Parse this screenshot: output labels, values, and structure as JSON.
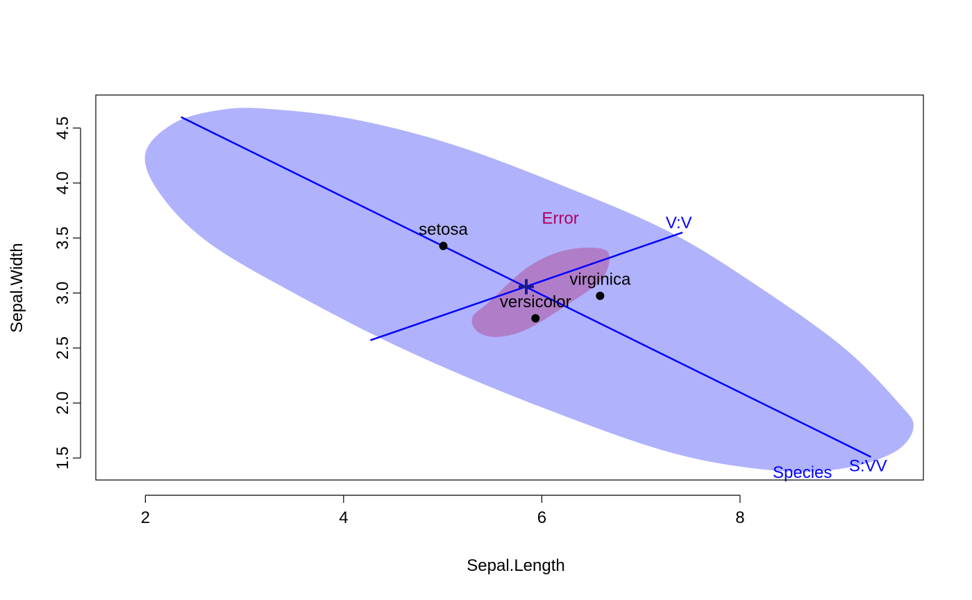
{
  "chart_data": {
    "type": "scatter",
    "title": "",
    "xlabel": "Sepal.Length",
    "ylabel": "Sepal.Width",
    "xlim": [
      1.5,
      9.85
    ],
    "ylim": [
      1.3,
      4.8
    ],
    "xticks": [
      2,
      4,
      6,
      8
    ],
    "yticks": [
      1.5,
      2.0,
      2.5,
      3.0,
      3.5,
      4.0,
      4.5
    ],
    "xtick_labels": [
      "2",
      "4",
      "6",
      "8"
    ],
    "ytick_labels": [
      "1.5",
      "2.0",
      "2.5",
      "3.0",
      "3.5",
      "4.0",
      "4.5"
    ],
    "grid": false,
    "legend": "none",
    "points": [
      {
        "label": "setosa",
        "x": 5.006,
        "y": 3.428
      },
      {
        "label": "versicolor",
        "x": 5.936,
        "y": 2.77
      },
      {
        "label": "virginica",
        "x": 6.588,
        "y": 2.974
      }
    ],
    "grand_mean": {
      "x": 5.843,
      "y": 3.057
    },
    "ellipses": [
      {
        "label": "Species",
        "fill": "#b0b2fc",
        "polygon": [
          [
            2.0,
            4.27
          ],
          [
            2.3,
            4.55
          ],
          [
            2.8,
            4.67
          ],
          [
            3.3,
            4.67
          ],
          [
            4.1,
            4.58
          ],
          [
            5.1,
            4.35
          ],
          [
            6.2,
            3.98
          ],
          [
            7.3,
            3.55
          ],
          [
            8.2,
            3.05
          ],
          [
            9.05,
            2.5
          ],
          [
            9.6,
            2.0
          ],
          [
            9.75,
            1.78
          ],
          [
            9.55,
            1.55
          ],
          [
            9.0,
            1.4
          ],
          [
            8.3,
            1.39
          ],
          [
            7.3,
            1.55
          ],
          [
            6.0,
            1.96
          ],
          [
            4.7,
            2.45
          ],
          [
            3.6,
            2.95
          ],
          [
            2.65,
            3.45
          ],
          [
            2.15,
            3.9
          ]
        ]
      },
      {
        "label": "Error",
        "fill": "#b07ec8",
        "polygon": [
          [
            5.47,
            2.92
          ],
          [
            5.85,
            3.23
          ],
          [
            6.2,
            3.38
          ],
          [
            6.55,
            3.41
          ],
          [
            6.68,
            3.34
          ],
          [
            6.6,
            3.12
          ],
          [
            6.25,
            2.89
          ],
          [
            5.85,
            2.67
          ],
          [
            5.55,
            2.6
          ],
          [
            5.35,
            2.65
          ],
          [
            5.3,
            2.78
          ]
        ]
      }
    ],
    "axes_lines": [
      {
        "label": "S:VV",
        "from": [
          2.36,
          4.6
        ],
        "to": [
          9.32,
          1.51
        ],
        "color": "#0000ff"
      },
      {
        "label": "V:V",
        "from": [
          4.27,
          2.57
        ],
        "to": [
          7.42,
          3.55
        ],
        "color": "#0000ff"
      }
    ],
    "annotations": [
      {
        "text": "Error",
        "x": 6.0,
        "y": 3.63,
        "color": "#b0005f"
      },
      {
        "text": "V:V",
        "x": 7.25,
        "y": 3.59,
        "color": "#0000ff"
      },
      {
        "text": "S:VV",
        "x": 9.1,
        "y": 1.38,
        "color": "#0000ff"
      },
      {
        "text": "Species",
        "x": 8.33,
        "y": 1.32,
        "color": "#0000ff"
      }
    ]
  }
}
